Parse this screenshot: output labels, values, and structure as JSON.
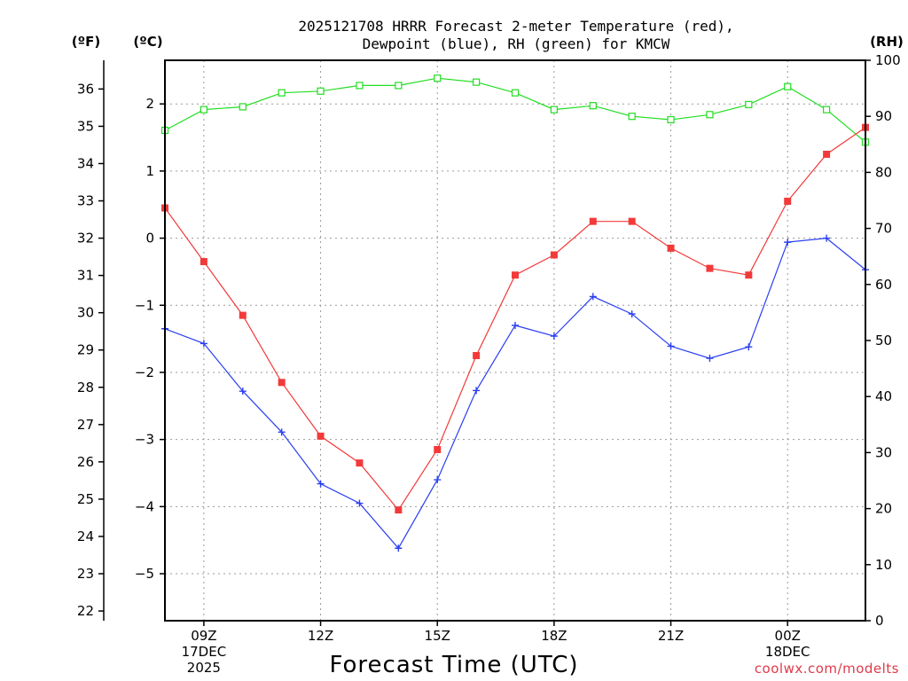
{
  "chart_data": {
    "type": "line",
    "title": [
      "2025121708 HRRR Forecast 2-meter Temperature (red),",
      "Dewpoint (blue), RH (green) for KMCW"
    ],
    "xlabel": "Forecast Time (UTC)",
    "units": {
      "fahrenheit": "(ºF)",
      "celsius": "(ºC)",
      "rh": "(RH)"
    },
    "credit": "coolwx.com/modelts",
    "x_hours": [
      8,
      9,
      10,
      11,
      12,
      13,
      14,
      15,
      16,
      17,
      18,
      19,
      20,
      21,
      22,
      23,
      24,
      25,
      26
    ],
    "xlim": [
      8,
      26
    ],
    "x_ticks": [
      {
        "hour": 9,
        "lines": [
          "09Z",
          "17DEC",
          "2025"
        ]
      },
      {
        "hour": 12,
        "lines": [
          "12Z"
        ]
      },
      {
        "hour": 15,
        "lines": [
          "15Z"
        ]
      },
      {
        "hour": 18,
        "lines": [
          "18Z"
        ]
      },
      {
        "hour": 21,
        "lines": [
          "21Z"
        ]
      },
      {
        "hour": 24,
        "lines": [
          "00Z",
          "18DEC"
        ]
      }
    ],
    "celsius_axis": {
      "ylim": [
        -5.7,
        2.65
      ],
      "ticks": [
        "2",
        "1",
        "0",
        "−1",
        "−2",
        "−3",
        "−4",
        "−5"
      ]
    },
    "fahrenheit_axis": {
      "ylim": [
        21.74,
        36.77
      ],
      "ticks": [
        "36",
        "35",
        "34",
        "33",
        "32",
        "31",
        "30",
        "29",
        "28",
        "27",
        "26",
        "25",
        "24",
        "23",
        "22"
      ]
    },
    "rh_axis": {
      "ylim": [
        0,
        100
      ],
      "ticks": [
        "100",
        "90",
        "80",
        "70",
        "60",
        "50",
        "40",
        "30",
        "20",
        "10",
        "0"
      ]
    },
    "series": [
      {
        "name": "Temperature",
        "axis": "celsius",
        "color": "#f23a3a",
        "marker": "filled-square",
        "values": [
          0.45,
          -0.35,
          -1.15,
          -2.15,
          -2.95,
          -3.35,
          -4.05,
          -3.15,
          -1.75,
          -0.55,
          -0.25,
          0.25,
          0.25,
          -0.15,
          -0.45,
          -0.55,
          0.55,
          1.25,
          1.65
        ]
      },
      {
        "name": "Dewpoint",
        "axis": "celsius",
        "color": "#2a3ff0",
        "marker": "plus",
        "values": [
          -1.35,
          -1.57,
          -2.28,
          -2.89,
          -3.66,
          -3.95,
          -4.62,
          -3.6,
          -2.27,
          -1.3,
          -1.46,
          -0.87,
          -1.13,
          -1.61,
          -1.79,
          -1.62,
          -0.06,
          0.0,
          -0.47
        ]
      },
      {
        "name": "RH",
        "axis": "rh",
        "color": "#22dd22",
        "marker": "open-square",
        "values": [
          87.5,
          91.2,
          91.7,
          94.2,
          94.5,
          95.5,
          95.5,
          96.8,
          96.1,
          94.2,
          91.2,
          91.9,
          90.0,
          89.4,
          90.3,
          92.1,
          95.3,
          91.2,
          85.4
        ]
      }
    ]
  }
}
